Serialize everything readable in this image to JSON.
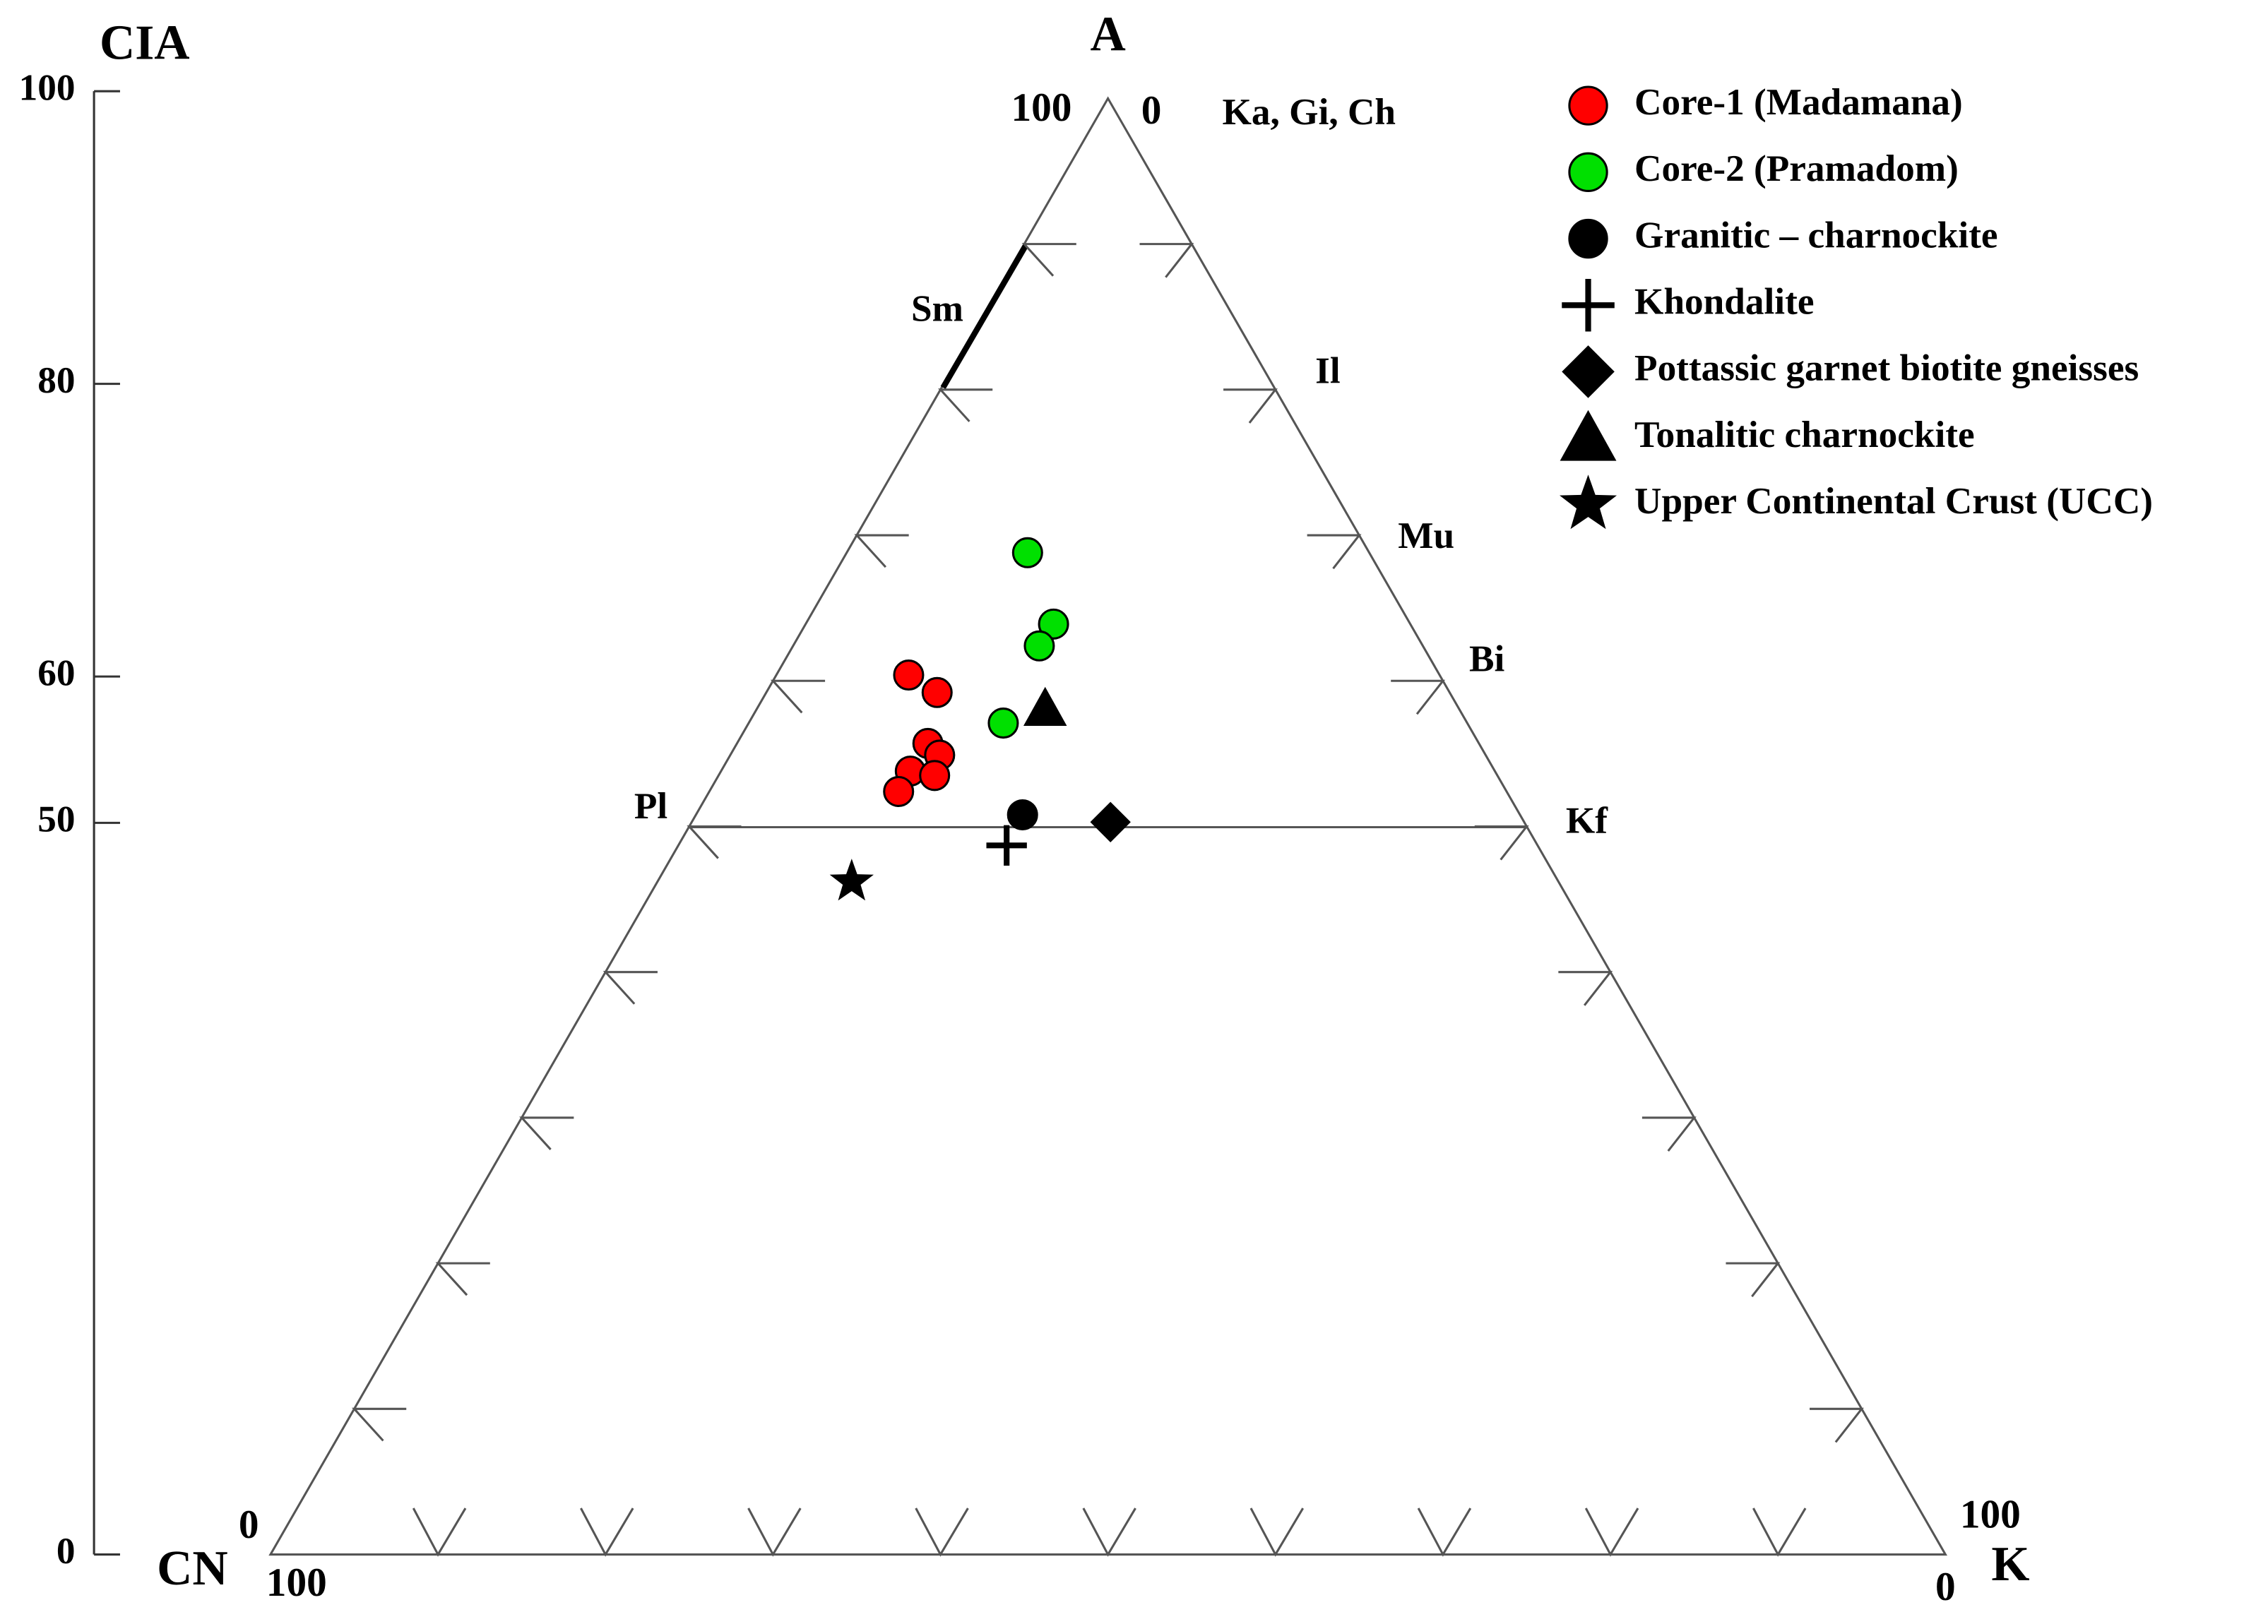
{
  "chart_data": {
    "type": "ternary",
    "y_axis_label": "CIA",
    "ylim": [
      0,
      100
    ],
    "yticks": [
      0,
      50,
      60,
      80,
      100
    ],
    "apex_labels": {
      "top": "A",
      "left": "CN",
      "right": "K"
    },
    "corner_values": {
      "top_left": "100",
      "top_right": "0",
      "left_top": "0",
      "left_bottom": "100",
      "right_top": "100",
      "right_bottom": "0"
    },
    "minerals": [
      "Ka, Gi, Ch",
      "Sm",
      "Il",
      "Mu",
      "Bi",
      "Pl",
      "Kf"
    ],
    "series": [
      {
        "name": "Core-1 (Madamana)",
        "marker": "circle",
        "color": "#ff0000",
        "a": [
          60.4,
          59.2,
          55.7,
          54.9,
          53.8,
          53.5,
          52.4
        ],
        "k": [
          7.9,
          10.2,
          11.4,
          12.5,
          11.3,
          12.9,
          11.3
        ]
      },
      {
        "name": "Core-2 (Pramadom)",
        "marker": "circle",
        "color": "#00e000",
        "a": [
          68.8,
          63.9,
          62.4,
          57.1
        ],
        "k": [
          10.8,
          14.8,
          14.7,
          15.2
        ]
      },
      {
        "name": "Granitic – charnockite",
        "marker": "circle",
        "color": "#000000",
        "a": [
          50.8
        ],
        "k": [
          19.5
        ]
      },
      {
        "name": "Khondalite",
        "marker": "plus",
        "color": "#000000",
        "a": [
          48.7
        ],
        "k": [
          19.6
        ]
      },
      {
        "name": "Pottassic garnet biotite gneisses",
        "marker": "diamond",
        "color": "#000000",
        "a": [
          50.3
        ],
        "k": [
          25.0
        ]
      },
      {
        "name": "Tonalitic charnockite",
        "marker": "triangle",
        "color": "#000000",
        "a": [
          58.1
        ],
        "k": [
          17.2
        ]
      },
      {
        "name": "Upper Continental Crust (UCC)",
        "marker": "star",
        "color": "#000000",
        "a": [
          46.2
        ],
        "k": [
          11.6
        ]
      }
    ]
  }
}
